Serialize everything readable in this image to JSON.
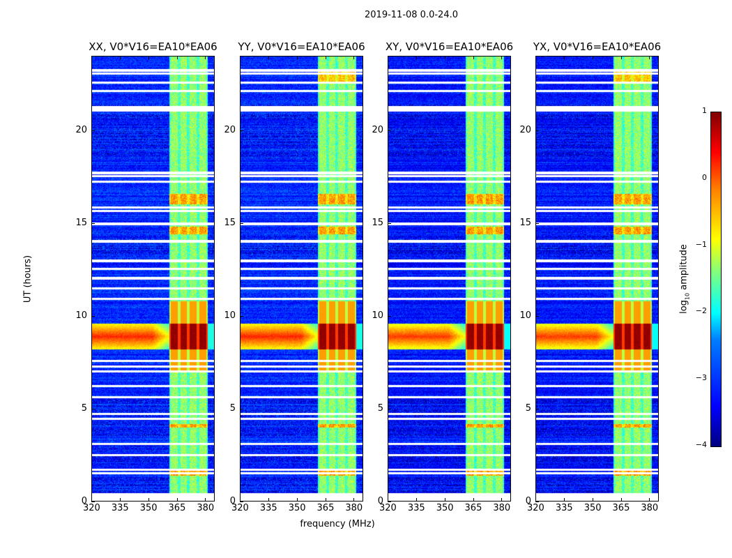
{
  "suptitle": "2019-11-08 0.0-24.0",
  "chart_data": {
    "type": "heatmap",
    "panels": [
      {
        "title": "XX, V0*V16=EA10*EA06"
      },
      {
        "title": "YY, V0*V16=EA10*EA06"
      },
      {
        "title": "XY, V0*V16=EA10*EA06"
      },
      {
        "title": "YX, V0*V16=EA10*EA06"
      }
    ],
    "xlabel": "frequency (MHz)",
    "ylabel": "UT (hours)",
    "xlim": [
      320,
      385
    ],
    "ylim": [
      0,
      24
    ],
    "xticks": [
      "320",
      "335",
      "350",
      "365",
      "380"
    ],
    "xtick_values": [
      320,
      335,
      350,
      365,
      380
    ],
    "yticks": [
      "0",
      "5",
      "10",
      "15",
      "20"
    ],
    "ytick_values": [
      0,
      5,
      10,
      15,
      20
    ],
    "colorbar": {
      "label_prefix": "log",
      "label_sub": "10",
      "label_suffix": " amplitude",
      "range": [
        -4,
        1
      ],
      "ticks": [
        "1",
        "0",
        "−1",
        "−2",
        "−3",
        "−4"
      ],
      "tick_values": [
        1,
        0,
        -1,
        -2,
        -3,
        -4
      ],
      "colormap": "jet"
    },
    "features": {
      "background_log_amp": -3.2,
      "signal_band_mhz": [
        361,
        381
      ],
      "signal_channels_mhz": [
        363.5,
        368.5,
        373.5,
        378.5
      ],
      "strong_rfi_hours": [
        8.2,
        9.6
      ],
      "flagged_hours": [
        23.24,
        23.06,
        22.57,
        22.12,
        21.25,
        21.1,
        17.72,
        17.54,
        17.24,
        15.85,
        15.66,
        14.98,
        14.04,
        12.99,
        12.54,
        12.05,
        11.49,
        10.93,
        7.59,
        7.29,
        7.02,
        6.23,
        5.63,
        4.73,
        4.47,
        3.12,
        2.52,
        1.73,
        1.54,
        0.41
      ],
      "noisy_dark_hours": [
        [
          0.5,
          1.3
        ],
        [
          2.0,
          3.0
        ],
        [
          3.5,
          5.8
        ],
        [
          13.0,
          14.5
        ],
        [
          18.5,
          21.5
        ]
      ]
    }
  }
}
